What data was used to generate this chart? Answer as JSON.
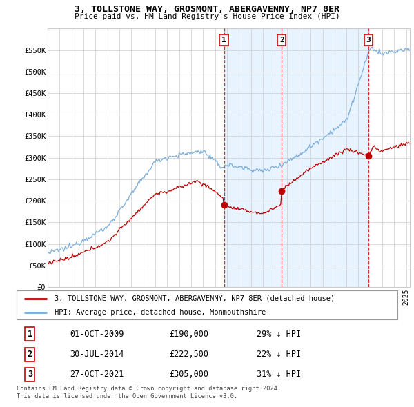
{
  "title": "3, TOLLSTONE WAY, GROSMONT, ABERGAVENNY, NP7 8ER",
  "subtitle": "Price paid vs. HM Land Registry's House Price Index (HPI)",
  "ylim": [
    0,
    600000
  ],
  "yticks": [
    0,
    50000,
    100000,
    150000,
    200000,
    250000,
    300000,
    350000,
    400000,
    450000,
    500000,
    550000
  ],
  "ytick_labels": [
    "£0",
    "£50K",
    "£100K",
    "£150K",
    "£200K",
    "£250K",
    "£300K",
    "£350K",
    "£400K",
    "£450K",
    "£500K",
    "£550K"
  ],
  "xlim_start": 1995.0,
  "xlim_end": 2025.3,
  "sale_dates": [
    2009.75,
    2014.58,
    2021.83
  ],
  "sale_prices": [
    190000,
    222500,
    305000
  ],
  "sale_labels": [
    "1",
    "2",
    "3"
  ],
  "sale_date_strings": [
    "01-OCT-2009",
    "30-JUL-2014",
    "27-OCT-2021"
  ],
  "sale_price_strings": [
    "£190,000",
    "£222,500",
    "£305,000"
  ],
  "sale_hpi_strings": [
    "29% ↓ HPI",
    "22% ↓ HPI",
    "31% ↓ HPI"
  ],
  "property_line_color": "#bb0000",
  "hpi_line_color": "#7aadda",
  "shade_color": "#ddeeff",
  "vline_color": "#cc0000",
  "grid_color": "#cccccc",
  "legend_property": "3, TOLLSTONE WAY, GROSMONT, ABERGAVENNY, NP7 8ER (detached house)",
  "legend_hpi": "HPI: Average price, detached house, Monmouthshire",
  "footnote1": "Contains HM Land Registry data © Crown copyright and database right 2024.",
  "footnote2": "This data is licensed under the Open Government Licence v3.0.",
  "background_color": "#ffffff"
}
